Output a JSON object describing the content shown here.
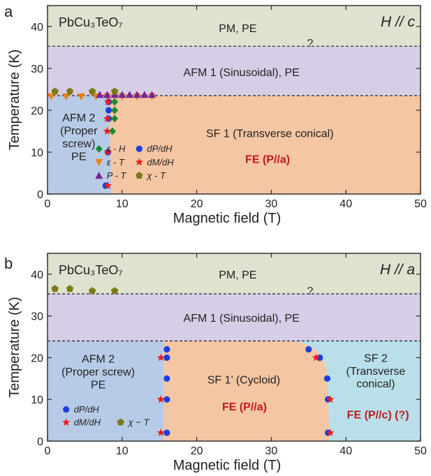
{
  "colors": {
    "pm_pe": "#dde3cf",
    "afm1": "#d6cde6",
    "afm2": "#b7cbe6",
    "sf": "#f5c6a3",
    "sf2": "#b9e0ea",
    "fe_text": "#c0181f",
    "blue_circle": "#1a3fe0",
    "red_star": "#e8201e",
    "green_diamond": "#1d8a2e",
    "orange_triangle": "#f07f15",
    "purple_triangle": "#7a2294",
    "olive_pentagon": "#7d7a14"
  },
  "chart_data": [
    {
      "panel_label": "a",
      "type": "scatter",
      "compound": "PbCu₃TeO₇",
      "direction_label": "H // c",
      "xlabel": "Magnetic field (T)",
      "ylabel": "Temperature (K)",
      "xlim": [
        0,
        50
      ],
      "ylim": [
        0,
        45
      ],
      "xticks": [
        "0",
        "10",
        "20",
        "30",
        "40",
        "50"
      ],
      "yticks": [
        "0",
        "10",
        "20",
        "30",
        "40"
      ],
      "phase_labels": [
        {
          "lines": [
            "PM, PE"
          ]
        },
        {
          "lines": [
            "AFM 1 (Sinusoidal), PE"
          ]
        },
        {
          "lines": [
            "AFM 2",
            "(Proper",
            "screw)",
            "PE"
          ]
        },
        {
          "lines": [
            "SF 1 (Transverse conical)"
          ]
        },
        {
          "lines": [
            "FE (P//a)"
          ],
          "style": "fe"
        }
      ],
      "question_mark": "?",
      "boundaries": {
        "pm_afm1_T": 35.3,
        "afm1_afm2_T": 23.5,
        "spin_flop_H": 8.2
      },
      "series": [
        {
          "name": "ε - H",
          "marker": "diamond",
          "color": "#1d8a2e",
          "points": [
            [
              9,
              22
            ],
            [
              9,
              20
            ],
            [
              9,
              18
            ],
            [
              8.7,
              15
            ]
          ]
        },
        {
          "name": "ε - T",
          "marker": "triangle-down",
          "color": "#f07f15",
          "points": [
            [
              0.5,
              23.3
            ],
            [
              2.5,
              23.3
            ],
            [
              4.5,
              23.3
            ],
            [
              6.5,
              23.3
            ],
            [
              8,
              23.3
            ],
            [
              10,
              23.3
            ],
            [
              12,
              23.3
            ],
            [
              14,
              23.3
            ]
          ]
        },
        {
          "name": "P - T",
          "marker": "triangle-up",
          "color": "#7a2294",
          "points": [
            [
              7,
              23.7
            ],
            [
              8,
              23.7
            ],
            [
              9,
              23.7
            ],
            [
              10,
              23.7
            ],
            [
              11,
              23.7
            ],
            [
              12,
              23.7
            ],
            [
              13,
              23.7
            ],
            [
              14,
              23.7
            ]
          ]
        },
        {
          "name": "dP/dH",
          "marker": "circle",
          "color": "#1a3fe0",
          "points": [
            [
              8.2,
              22
            ],
            [
              8.2,
              20
            ],
            [
              8.2,
              18
            ],
            [
              8.1,
              10
            ],
            [
              7.8,
              2
            ]
          ]
        },
        {
          "name": "dM/dH",
          "marker": "star",
          "color": "#e8201e",
          "points": [
            [
              8.1,
              22
            ],
            [
              8,
              18
            ],
            [
              8,
              15
            ],
            [
              8.1,
              10
            ],
            [
              8.1,
              2
            ]
          ]
        },
        {
          "name": "χ - T",
          "marker": "pentagon",
          "color": "#7d7a14",
          "points": [
            [
              1,
              24.5
            ],
            [
              3,
              24.5
            ],
            [
              6,
              24.5
            ],
            [
              9,
              24.5
            ]
          ]
        }
      ],
      "legend": {
        "columns": [
          [
            "ε - H",
            "ε - T",
            "P - T"
          ],
          [
            "dP/dH",
            "dM/dH",
            "χ - T"
          ]
        ]
      }
    },
    {
      "panel_label": "b",
      "type": "scatter",
      "compound": "PbCu₃TeO₇",
      "direction_label": "H // a",
      "xlabel": "Magnetic field (T)",
      "ylabel": "Temperature (K)",
      "xlim": [
        0,
        50
      ],
      "ylim": [
        0,
        45
      ],
      "xticks": [
        "0",
        "10",
        "20",
        "30",
        "40",
        "50"
      ],
      "yticks": [
        "0",
        "10",
        "20",
        "30",
        "40"
      ],
      "phase_labels": [
        {
          "lines": [
            "PM, PE"
          ]
        },
        {
          "lines": [
            "AFM 1 (Sinusoidal), PE"
          ]
        },
        {
          "lines": [
            "AFM 2",
            "(Proper screw)",
            "PE"
          ]
        },
        {
          "lines": [
            "SF 1’ (Cycloid)"
          ]
        },
        {
          "lines": [
            "FE (P//a)"
          ],
          "style": "fe"
        },
        {
          "lines": [
            "SF 2",
            "(Transverse",
            "conical)"
          ]
        },
        {
          "lines": [
            "FE (P//c) (?)"
          ],
          "style": "fe"
        }
      ],
      "question_mark": "?",
      "boundaries": {
        "pm_afm1_T": 35.3,
        "afm1_lower_T": 24,
        "spin_flop_H": 15.6,
        "sf2_H": 37.8
      },
      "series": [
        {
          "name": "dP/dH",
          "marker": "circle",
          "color": "#1a3fe0",
          "points": [
            [
              16,
              22
            ],
            [
              16,
              20
            ],
            [
              16,
              15
            ],
            [
              16,
              10
            ],
            [
              16,
              2
            ],
            [
              35,
              22
            ],
            [
              36.5,
              20
            ],
            [
              37.5,
              15
            ],
            [
              37.6,
              10
            ],
            [
              37.6,
              2
            ]
          ]
        },
        {
          "name": "dM/dH",
          "marker": "star",
          "color": "#e8201e",
          "points": [
            [
              15.2,
              20
            ],
            [
              15.2,
              10
            ],
            [
              15.2,
              2
            ],
            [
              36,
              20
            ],
            [
              37.9,
              10
            ],
            [
              37.9,
              2
            ]
          ]
        },
        {
          "name": "χ − T",
          "marker": "pentagon",
          "color": "#7d7a14",
          "points": [
            [
              1,
              36.5
            ],
            [
              3,
              36.5
            ],
            [
              6,
              36
            ],
            [
              9,
              36
            ]
          ]
        }
      ],
      "legend": {
        "columns": [
          [
            "dP/dH",
            "dM/dH"
          ],
          [
            "χ − T"
          ]
        ]
      }
    }
  ]
}
